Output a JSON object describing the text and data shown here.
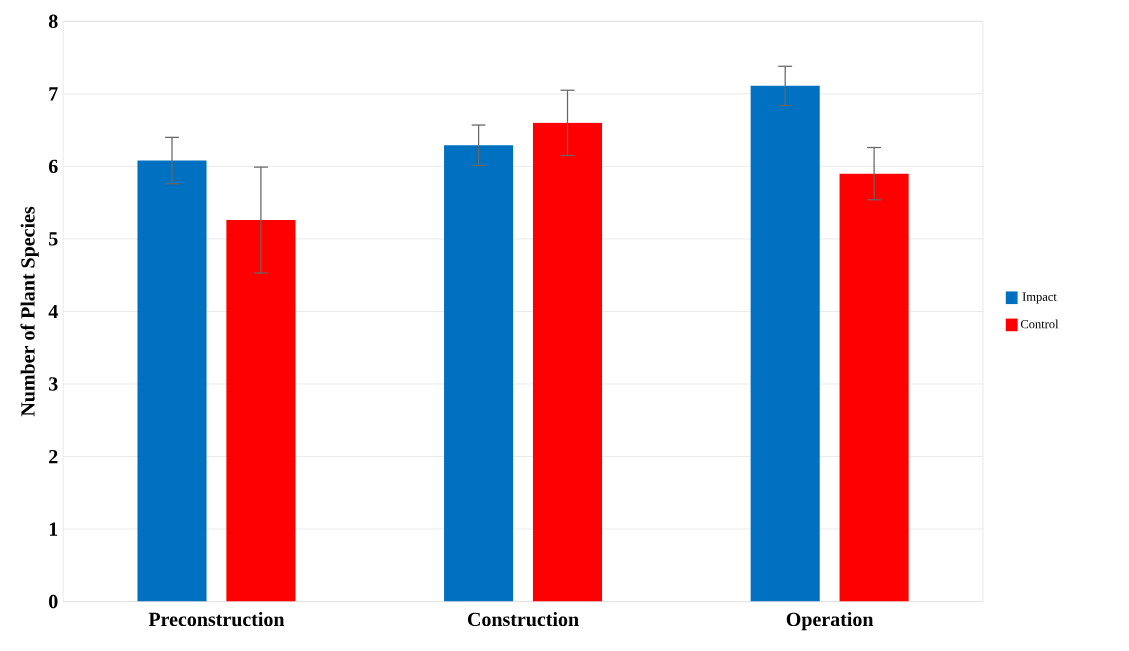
{
  "chart_data": {
    "type": "bar",
    "ylabel": "Number of Plant Species",
    "categories": [
      "Preconstruction",
      "Construction",
      "Operation"
    ],
    "series": [
      {
        "name": "Impact",
        "color": "#0070c0",
        "values": [
          6.08,
          6.29,
          7.11
        ],
        "errors": [
          0.32,
          0.28,
          0.27
        ]
      },
      {
        "name": "Control",
        "color": "#ff0000",
        "values": [
          5.26,
          6.6,
          5.9
        ],
        "errors": [
          0.73,
          0.45,
          0.36
        ]
      }
    ],
    "ylim": [
      0,
      8
    ],
    "yticks": [
      0,
      1,
      2,
      3,
      4,
      5,
      6,
      7,
      8
    ],
    "grid": "y",
    "legend": "right"
  }
}
